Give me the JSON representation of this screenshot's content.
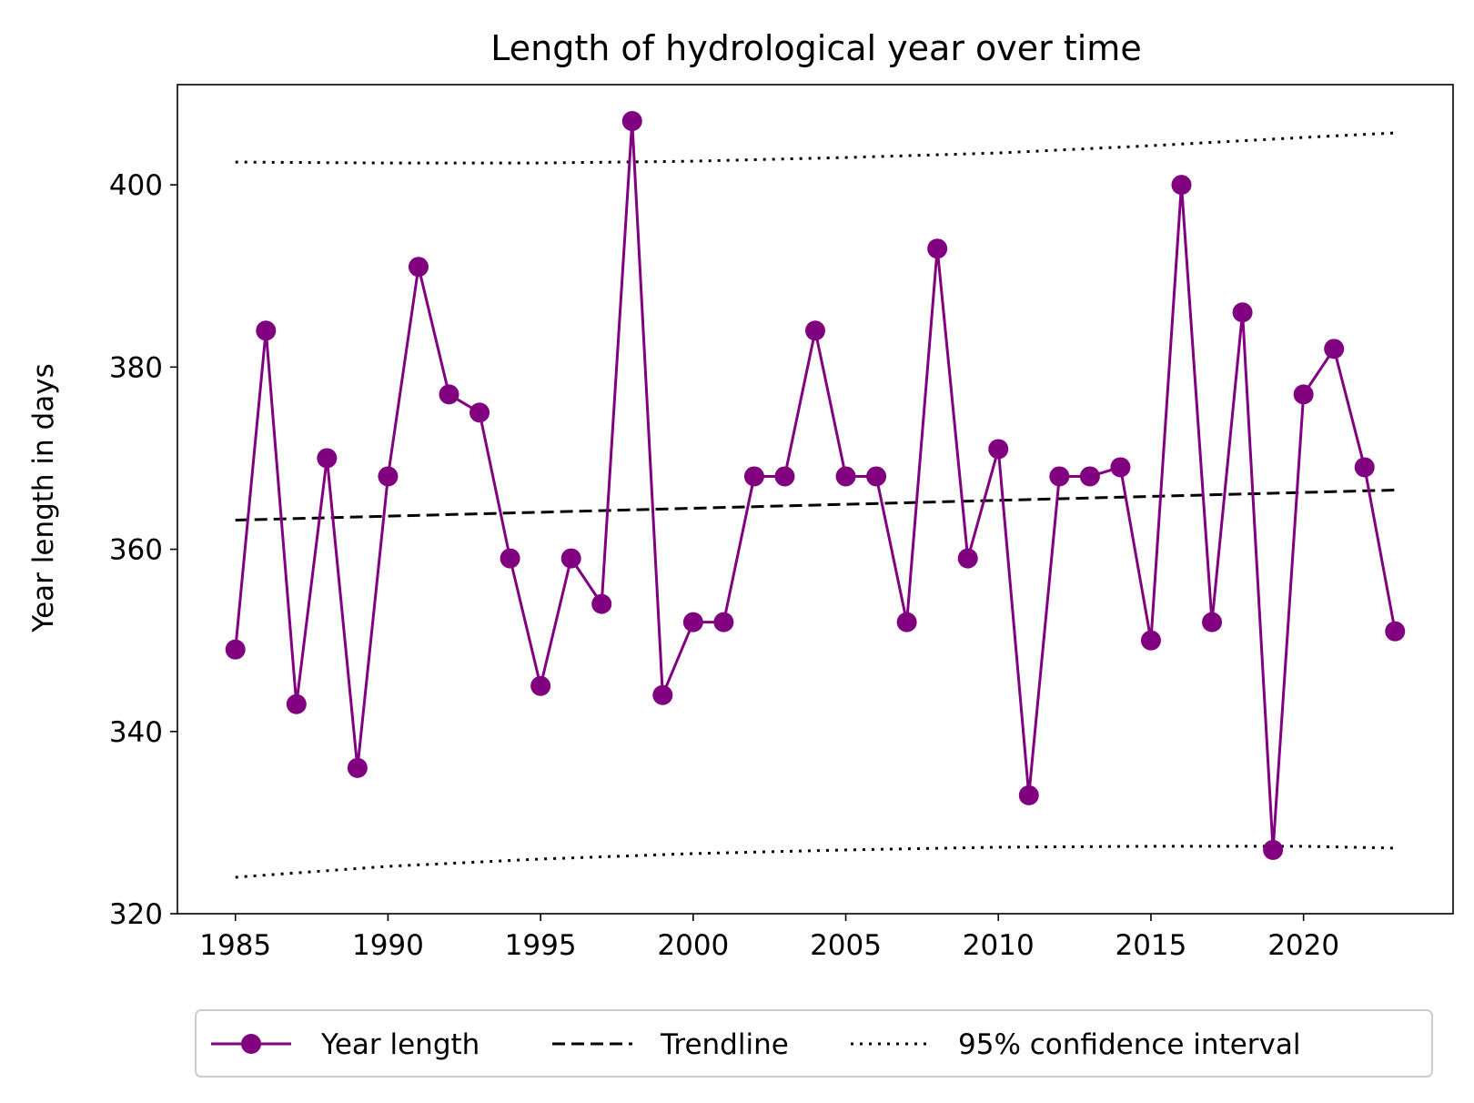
{
  "chart_data": {
    "type": "line",
    "title": "Length of hydrological year over time",
    "xlabel": "",
    "ylabel": "Year length in days",
    "xlim": [
      1983.1,
      2024.9
    ],
    "ylim": [
      320,
      411
    ],
    "x_ticks": [
      1985,
      1990,
      1995,
      2000,
      2005,
      2010,
      2015,
      2020
    ],
    "y_ticks": [
      320,
      340,
      360,
      380,
      400
    ],
    "grid": false,
    "legend_position": "bottom-center",
    "series": [
      {
        "name": "Year length",
        "style": "solid-with-markers",
        "color": "#800080",
        "x": [
          1985,
          1986,
          1987,
          1988,
          1989,
          1990,
          1991,
          1992,
          1993,
          1994,
          1995,
          1996,
          1997,
          1998,
          1999,
          2000,
          2001,
          2002,
          2003,
          2004,
          2005,
          2006,
          2007,
          2008,
          2009,
          2010,
          2011,
          2012,
          2013,
          2014,
          2015,
          2016,
          2017,
          2018,
          2019,
          2020,
          2021,
          2022,
          2023
        ],
        "values": [
          349,
          384,
          343,
          370,
          336,
          368,
          391,
          377,
          375,
          359,
          345,
          359,
          354,
          407,
          344,
          352,
          352,
          368,
          368,
          384,
          368,
          368,
          352,
          393,
          359,
          371,
          333,
          368,
          368,
          369,
          350,
          400,
          352,
          386,
          327,
          377,
          382,
          369,
          351
        ]
      },
      {
        "name": "Trendline",
        "style": "dashed",
        "color": "#000000",
        "x": [
          1985,
          2023
        ],
        "values": [
          363.2,
          366.5
        ]
      },
      {
        "name": "95% confidence interval",
        "style": "dotted",
        "color": "#000000",
        "upper": {
          "x": [
            1985,
            1990,
            1995,
            2000,
            2005,
            2010,
            2015,
            2020,
            2023
          ],
          "values": [
            402.5,
            402.4,
            402.4,
            402.6,
            403.0,
            403.5,
            404.3,
            405.2,
            405.7
          ]
        },
        "lower": {
          "x": [
            1985,
            1990,
            1995,
            2000,
            2005,
            2010,
            2015,
            2020,
            2023
          ],
          "values": [
            324.0,
            325.2,
            326.0,
            326.6,
            327.0,
            327.3,
            327.4,
            327.4,
            327.2
          ]
        }
      }
    ]
  }
}
